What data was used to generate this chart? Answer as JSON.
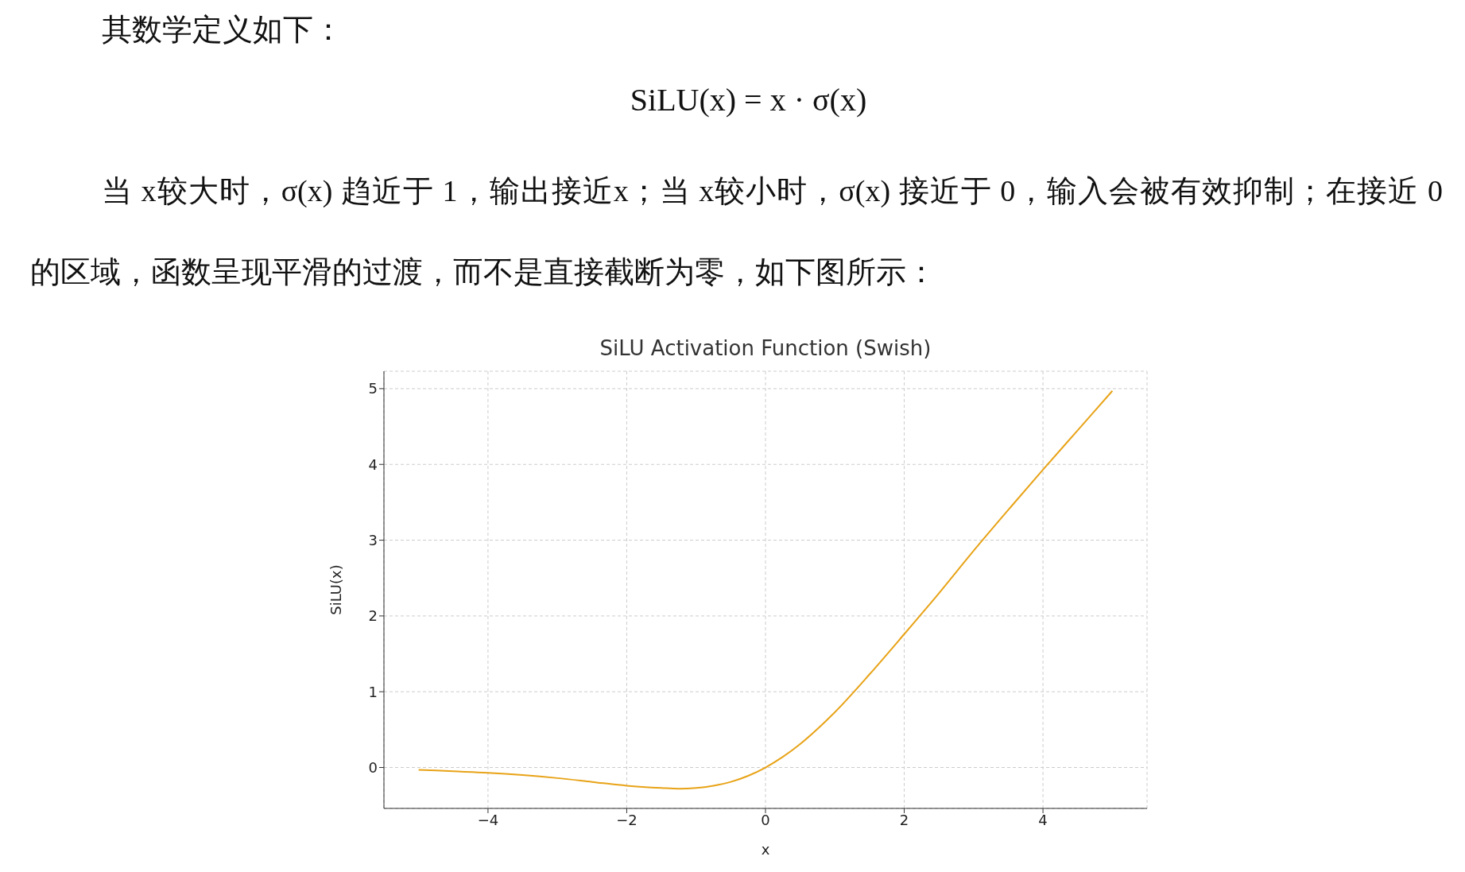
{
  "chart_data": {
    "type": "line",
    "title": "SiLU Activation Function (Swish)",
    "xlabel": "x",
    "ylabel": "SiLU(x)",
    "annotations": [
      "其数学定义如下：",
      "SiLU(x) = x · σ(x)",
      "当 x较大时，σ(x) 趋近于 1，输出接近x；当 x较小时，σ(x) 接近于 0，输入会被有效抑制；在接近 0 的区域，函数呈现平滑的过渡，而不是直接截断为零，如下图所示："
    ],
    "x": [
      -5,
      -4.5,
      -4,
      -3.5,
      -3,
      -2.5,
      -2,
      -1.5,
      -1.25,
      -1,
      -0.75,
      -0.5,
      -0.25,
      0,
      0.25,
      0.5,
      0.75,
      1,
      1.5,
      2,
      2.5,
      3,
      3.5,
      4,
      4.5,
      5
    ],
    "series": [
      {
        "color": "#e8a317",
        "values": [
          -0.03,
          -0.05,
          -0.07,
          -0.1,
          -0.14,
          -0.19,
          -0.24,
          -0.27,
          -0.28,
          -0.27,
          -0.24,
          -0.19,
          -0.11,
          0,
          0.14,
          0.31,
          0.51,
          0.73,
          1.23,
          1.76,
          2.3,
          2.86,
          3.4,
          3.93,
          4.45,
          4.97
        ]
      }
    ],
    "xlim": [
      -5.5,
      5.5
    ],
    "ylim": [
      -0.54,
      5.23
    ],
    "xticks": [
      {
        "value": -4,
        "label": "−4"
      },
      {
        "value": -2,
        "label": "−2"
      },
      0,
      2,
      4
    ],
    "yticks": [
      0,
      1,
      2,
      3,
      4,
      5
    ],
    "grid": true,
    "line_style": "solid",
    "marker": "none",
    "legend": false
  }
}
